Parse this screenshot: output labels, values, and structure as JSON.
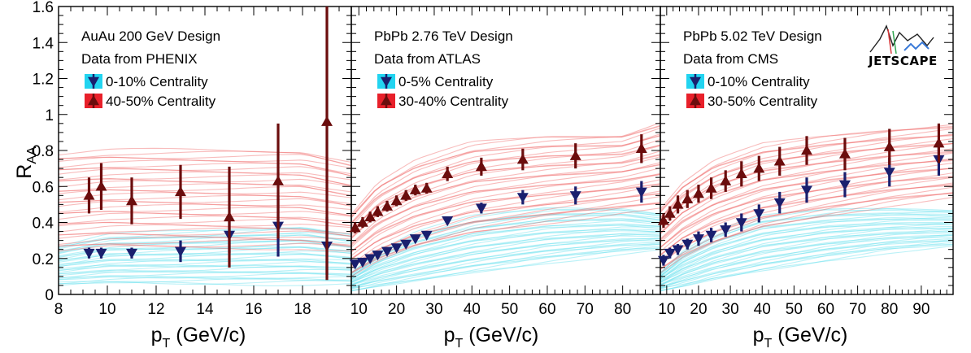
{
  "figure": {
    "y_axis_label": "R",
    "y_axis_label_sub": "AA",
    "x_axis_label": "p",
    "x_axis_label_sub": "T",
    "x_axis_label_unit": " (GeV/c)",
    "logo_text": "JETSCAPE",
    "band_colors": {
      "central_band": "#66e0ee",
      "peripheral_band": "#f06b6b",
      "central_marker": "#1a1f6e",
      "peripheral_marker": "#6b0d0d",
      "central_legend_box": "#22d4f0",
      "peripheral_legend_box": "#e8202a"
    }
  },
  "chart_data": [
    {
      "type": "line",
      "title": "AuAu 200 GeV Design",
      "subtitle": "Data from PHENIX",
      "xlim": [
        8,
        20
      ],
      "ylim": [
        0,
        1.6
      ],
      "x_ticks": [
        8,
        10,
        12,
        14,
        16,
        18
      ],
      "y_ticks": [
        0,
        0.2,
        0.4,
        0.6,
        0.8,
        1,
        1.2,
        1.4,
        1.6
      ],
      "y_tick_labels": [
        "0",
        "0.2",
        "0.4",
        "0.6",
        "0.8",
        "1",
        "1.2",
        "1.4",
        "1.6"
      ],
      "legend": [
        "0-10% Centrality",
        "40-50% Centrality"
      ],
      "central_band": {
        "x": [
          8,
          10,
          14,
          18,
          20
        ],
        "low": [
          0.05,
          0.06,
          0.06,
          0.06,
          0.06
        ],
        "high": [
          0.27,
          0.33,
          0.35,
          0.38,
          0.34
        ]
      },
      "peripheral_band": {
        "x": [
          8,
          10,
          14,
          18,
          20
        ],
        "low": [
          0.24,
          0.26,
          0.26,
          0.26,
          0.24
        ],
        "high": [
          0.78,
          0.8,
          0.8,
          0.8,
          0.74
        ]
      },
      "series": [
        {
          "name": "0-10% Centrality",
          "marker": "down-triangle",
          "x": [
            9.25,
            9.75,
            11,
            13,
            15,
            17,
            19
          ],
          "y": [
            0.23,
            0.23,
            0.23,
            0.24,
            0.33,
            0.38,
            0.27
          ],
          "err": [
            0.03,
            0.03,
            0.03,
            0.06,
            0.1,
            0.17,
            0.16
          ]
        },
        {
          "name": "40-50% Centrality",
          "marker": "up-triangle",
          "x": [
            9.25,
            9.75,
            11,
            13,
            15,
            17,
            19
          ],
          "y": [
            0.55,
            0.6,
            0.52,
            0.57,
            0.43,
            0.63,
            0.96
          ],
          "err": [
            0.1,
            0.13,
            0.13,
            0.15,
            0.28,
            0.32,
            0.88
          ]
        }
      ]
    },
    {
      "type": "line",
      "title": "PbPb 2.76 TeV Design",
      "subtitle": "Data from ATLAS",
      "xlim": [
        8,
        90
      ],
      "ylim": [
        0,
        1.6
      ],
      "x_ticks": [
        10,
        20,
        30,
        40,
        50,
        60,
        70,
        80
      ],
      "legend": [
        "0-5% Centrality",
        "30-40% Centrality"
      ],
      "central_band": {
        "x": [
          8,
          15,
          25,
          40,
          60,
          80,
          90
        ],
        "low": [
          0.02,
          0.04,
          0.07,
          0.12,
          0.18,
          0.23,
          0.25
        ],
        "high": [
          0.12,
          0.24,
          0.34,
          0.43,
          0.48,
          0.48,
          0.45
        ]
      },
      "peripheral_band": {
        "x": [
          8,
          15,
          25,
          40,
          60,
          80,
          90
        ],
        "low": [
          0.1,
          0.18,
          0.26,
          0.34,
          0.4,
          0.46,
          0.48
        ],
        "high": [
          0.45,
          0.62,
          0.74,
          0.84,
          0.88,
          0.89,
          0.96
        ]
      },
      "series": [
        {
          "name": "0-5% Centrality",
          "marker": "down-triangle",
          "x": [
            9,
            11,
            13,
            15,
            17.5,
            20,
            22.5,
            25,
            28,
            33.5,
            42.5,
            53.5,
            67.5,
            85
          ],
          "y": [
            0.17,
            0.18,
            0.2,
            0.22,
            0.24,
            0.26,
            0.28,
            0.31,
            0.33,
            0.41,
            0.48,
            0.54,
            0.55,
            0.57
          ],
          "err": [
            0.02,
            0.02,
            0.02,
            0.02,
            0.02,
            0.02,
            0.02,
            0.02,
            0.02,
            0.02,
            0.03,
            0.04,
            0.05,
            0.06
          ]
        },
        {
          "name": "30-40% Centrality",
          "marker": "up-triangle",
          "x": [
            9,
            11,
            13,
            15,
            17.5,
            20,
            22.5,
            25,
            28,
            33.5,
            42.5,
            53.5,
            67.5,
            85
          ],
          "y": [
            0.37,
            0.4,
            0.43,
            0.46,
            0.49,
            0.52,
            0.55,
            0.58,
            0.59,
            0.67,
            0.71,
            0.75,
            0.77,
            0.81
          ],
          "err": [
            0.03,
            0.03,
            0.03,
            0.03,
            0.03,
            0.03,
            0.03,
            0.03,
            0.03,
            0.04,
            0.05,
            0.06,
            0.07,
            0.08
          ]
        }
      ]
    },
    {
      "type": "line",
      "title": "PbPb 5.02 TeV Design",
      "subtitle": "Data from CMS",
      "xlim": [
        8,
        100
      ],
      "ylim": [
        0,
        1.6
      ],
      "x_ticks": [
        10,
        20,
        30,
        40,
        50,
        60,
        70,
        80,
        90
      ],
      "legend": [
        "0-10% Centrality",
        "30-50% Centrality"
      ],
      "central_band": {
        "x": [
          8,
          15,
          25,
          40,
          60,
          80,
          100
        ],
        "low": [
          0.02,
          0.04,
          0.08,
          0.13,
          0.19,
          0.24,
          0.27
        ],
        "high": [
          0.12,
          0.24,
          0.34,
          0.43,
          0.47,
          0.48,
          0.47
        ]
      },
      "peripheral_band": {
        "x": [
          8,
          15,
          25,
          40,
          60,
          80,
          100
        ],
        "low": [
          0.12,
          0.2,
          0.28,
          0.37,
          0.44,
          0.5,
          0.54
        ],
        "high": [
          0.48,
          0.62,
          0.74,
          0.83,
          0.88,
          0.92,
          0.95
        ]
      },
      "series": [
        {
          "name": "0-10% Centrality",
          "marker": "down-triangle",
          "x": [
            9,
            11,
            13.5,
            16.5,
            20,
            24,
            28.5,
            33.5,
            39,
            45.5,
            54,
            66,
            80,
            95.5
          ],
          "y": [
            0.19,
            0.23,
            0.25,
            0.28,
            0.31,
            0.33,
            0.36,
            0.4,
            0.45,
            0.51,
            0.58,
            0.61,
            0.68,
            0.75
          ],
          "err": [
            0.03,
            0.03,
            0.03,
            0.03,
            0.04,
            0.04,
            0.04,
            0.05,
            0.05,
            0.06,
            0.07,
            0.07,
            0.08,
            0.09
          ]
        },
        {
          "name": "30-50% Centrality",
          "marker": "up-triangle",
          "x": [
            9,
            11,
            13.5,
            16.5,
            20,
            24,
            28.5,
            33.5,
            39,
            45.5,
            54,
            66,
            80,
            95.5
          ],
          "y": [
            0.41,
            0.45,
            0.5,
            0.53,
            0.56,
            0.59,
            0.63,
            0.67,
            0.7,
            0.74,
            0.8,
            0.78,
            0.82,
            0.84
          ],
          "err": [
            0.04,
            0.04,
            0.05,
            0.05,
            0.05,
            0.06,
            0.06,
            0.07,
            0.07,
            0.08,
            0.08,
            0.09,
            0.1,
            0.11
          ]
        }
      ]
    }
  ]
}
